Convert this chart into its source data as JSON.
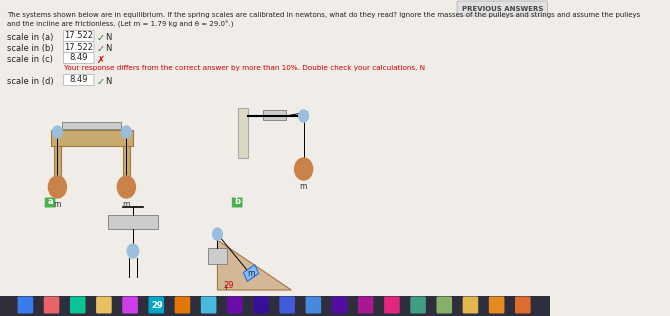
{
  "title_line1": "The systems shown below are in equilibrium. If the spring scales are calibrated in newtons, what do they read? Ignore the masses of the pulleys and strings and assume the pulleys",
  "title_line2": "and the incline are frictionless. (Let m = 1.79 kg and θ = 29.0°.)",
  "rows": [
    {
      "label": "scale in (a)",
      "value": "17.522",
      "symbol": "check",
      "unit": "N",
      "extra": ""
    },
    {
      "label": "scale in (b)",
      "value": "17.522",
      "symbol": "check",
      "unit": "N",
      "extra": ""
    },
    {
      "label": "scale in (c)",
      "value": "8.49",
      "symbol": "x",
      "unit": "",
      "extra": "Your response differs from the correct answer by more than 10%. Double check your calculations. N"
    },
    {
      "label": "scale in (d)",
      "value": "8.49",
      "symbol": "check",
      "unit": "N",
      "extra": ""
    }
  ],
  "bg_color": "#f0ede8",
  "text_color": "#222222",
  "check_color": "#2e7d32",
  "x_color": "#cc0000",
  "error_color": "#cc0000",
  "mass_color": "#c8824a",
  "table_color": "#c8a96e",
  "table_edge": "#a07840",
  "pulley_color": "#9abedc",
  "scale_color": "#cccccc",
  "scale_edge": "#888888",
  "wall_color": "#ddd8c4",
  "incline_color": "#d4b896",
  "mass_block_color": "#7fbfff",
  "label_a_color": "#4caf50",
  "label_b_color": "#4caf50",
  "previous_answers_text": "PREVIOUS ANSWERS",
  "theta_label": "29"
}
